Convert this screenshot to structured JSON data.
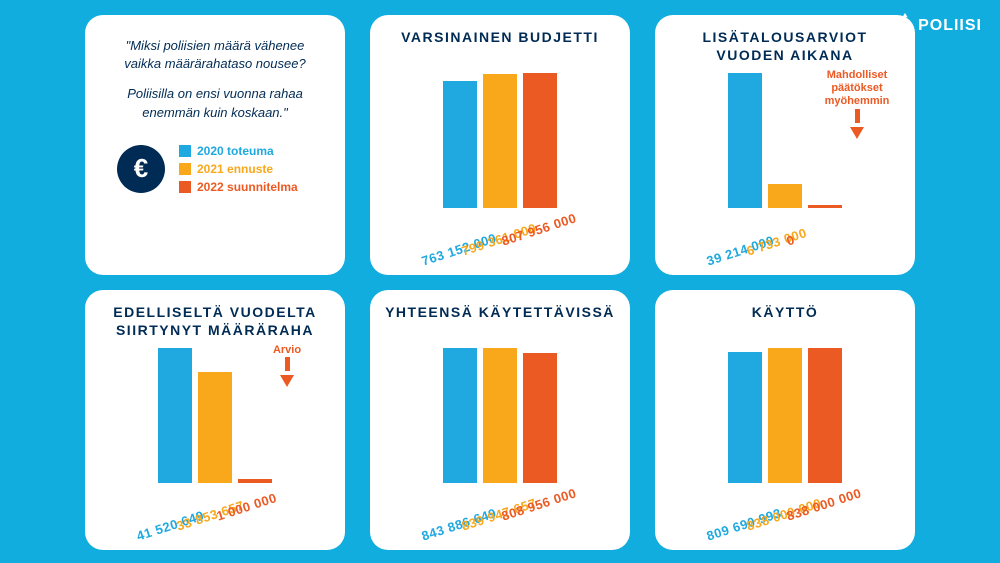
{
  "colors": {
    "bg": "#11adde",
    "card": "#ffffff",
    "navy": "#002b54",
    "blue": "#1fa9e0",
    "orange": "#f9a81c",
    "red": "#ec5a24"
  },
  "logo_text": "POLIISI",
  "intro_card": {
    "quote_line1": "\"Miksi poliisien määrä vähenee vaikka määrärahataso nousee?",
    "quote_line2": "Poliisilla on ensi vuonna rahaa enemmän kuin koskaan.\"",
    "euro_symbol": "€",
    "legend": [
      {
        "color": "#1fa9e0",
        "label": "2020 toteuma"
      },
      {
        "color": "#f9a81c",
        "label": "2021 ennuste"
      },
      {
        "color": "#ec5a24",
        "label": "2022 suunnitelma"
      }
    ]
  },
  "charts": [
    {
      "title": "VARSINAINEN BUDJETTI",
      "bars": [
        {
          "value": 763152000,
          "label": "763 152 000",
          "color": "#1fa9e0",
          "hpct": 94
        },
        {
          "value": 799361000,
          "label": "799 361 000",
          "color": "#f9a81c",
          "hpct": 99
        },
        {
          "value": 807956000,
          "label": "807 956 000",
          "color": "#ec5a24",
          "hpct": 100
        }
      ],
      "annotation": null
    },
    {
      "title": "LISÄTALOUSARVIOT VUODEN AIKANA",
      "bars": [
        {
          "value": 39214000,
          "label": "39 214 000",
          "color": "#1fa9e0",
          "hpct": 100
        },
        {
          "value": 6733000,
          "label": "6 733 000",
          "color": "#f9a81c",
          "hpct": 18
        },
        {
          "value": 0,
          "label": "0",
          "color": "#ec5a24",
          "hpct": 2
        }
      ],
      "annotation": {
        "text": "Mahdolliset päätökset myöhemmin",
        "color": "#ec5a24"
      }
    },
    {
      "title": "EDELLISELTÄ VUODELTA SIIRTYNYT MÄÄRÄRAHA",
      "bars": [
        {
          "value": 41520649,
          "label": "41 520 649",
          "color": "#1fa9e0",
          "hpct": 100
        },
        {
          "value": 33853657,
          "label": "33 853 657",
          "color": "#f9a81c",
          "hpct": 82
        },
        {
          "value": 1000000,
          "label": "1 000 000",
          "color": "#ec5a24",
          "hpct": 3
        }
      ],
      "annotation": {
        "text": "Arvio",
        "color": "#ec5a24"
      }
    },
    {
      "title": "YHTEENSÄ KÄYTETTÄVISSÄ",
      "bars": [
        {
          "value": 843886649,
          "label": "843 886 649",
          "color": "#1fa9e0",
          "hpct": 100
        },
        {
          "value": 839947657,
          "label": "839 947 657",
          "color": "#f9a81c",
          "hpct": 100
        },
        {
          "value": 808956000,
          "label": "808 956 000",
          "color": "#ec5a24",
          "hpct": 96
        }
      ],
      "annotation": null
    },
    {
      "title": "KÄYTTÖ",
      "bars": [
        {
          "value": 809690993,
          "label": "809 690 993",
          "color": "#1fa9e0",
          "hpct": 97
        },
        {
          "value": 838000000,
          "label": "838 000 000",
          "color": "#f9a81c",
          "hpct": 100
        },
        {
          "value": 838000000,
          "label": "838 000 000",
          "color": "#ec5a24",
          "hpct": 100
        }
      ],
      "annotation": null
    }
  ]
}
